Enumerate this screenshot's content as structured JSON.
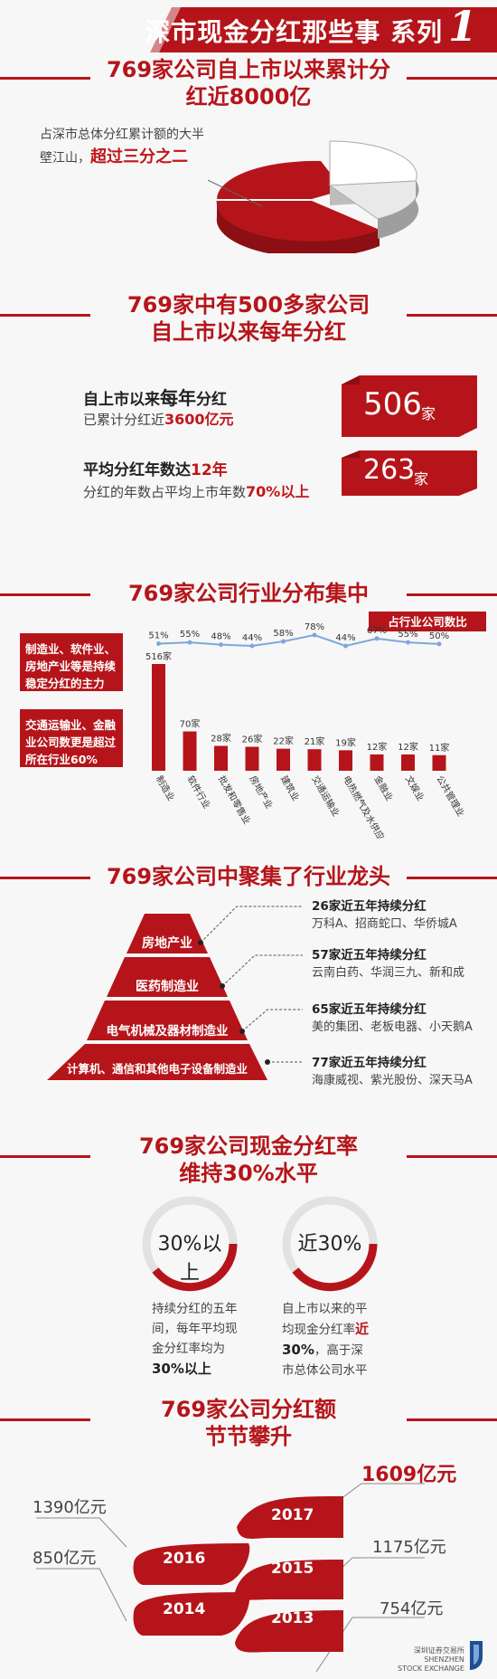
{
  "colors": {
    "accent": "#b5151a",
    "dark_red": "#8c0f13",
    "line_blue": "#7ea6dc",
    "pie_white": "#ffffff",
    "pie_grey": "#bdbdbd"
  },
  "banner": {
    "title": "深市现金分红那些事 系列",
    "number": "1"
  },
  "section1": {
    "title_line1": "769家公司自上市以来累计分",
    "title_line2": "红近8000亿",
    "desc_line1": "占深市总体分红累计额的大半",
    "desc_line2_a": "壁江山，",
    "desc_line2_b": "超过三分之二"
  },
  "section2": {
    "title_line1": "769家中有500多家公司",
    "title_line2": "自上市以来每年分红",
    "stat1": {
      "line1_a": "自上市以来",
      "line1_b": "每年",
      "line1_c": "分红",
      "line2_a": "已累计分红近",
      "line2_b": "3600亿元",
      "number": "506",
      "unit": "家"
    },
    "stat2": {
      "line1_a": "平均分红年数达",
      "line1_b": "12年",
      "line2_a": "分红的年数占平均上市年数",
      "line2_b": "70%以上",
      "number": "263",
      "unit": "家"
    }
  },
  "section3": {
    "title": "769家公司行业分布集中",
    "side_note1": "制造业、软件业、房地产业等是持续稳定分红的主力",
    "side_note2": "交通运输业、金融业公司数更是超过所在行业60%",
    "legend": "占行业公司数比"
  },
  "chart_data": {
    "type": "bar",
    "categories": [
      "制造业",
      "软件行业",
      "批发和零售业",
      "房地产业",
      "建筑业",
      "交通运输业",
      "电热燃气及水供应",
      "金融业",
      "文娱业",
      "公共管理业"
    ],
    "bar_labels": [
      "516家",
      "70家",
      "28家",
      "26家",
      "22家",
      "21家",
      "19家",
      "12家",
      "12家",
      "11家"
    ],
    "values": [
      516,
      70,
      28,
      26,
      22,
      21,
      19,
      12,
      12,
      11
    ],
    "line_labels": [
      "51%",
      "55%",
      "48%",
      "44%",
      "58%",
      "78%",
      "44%",
      "67%",
      "55%",
      "50%"
    ],
    "line_values": [
      51,
      55,
      48,
      44,
      58,
      78,
      44,
      67,
      55,
      50
    ],
    "legend": "占行业公司数比"
  },
  "section4": {
    "title": "769家公司中聚集了行业龙头",
    "tiers": [
      {
        "label": "房地产业",
        "title": "26家近五年持续分红",
        "firms": "万科A、招商蛇口、华侨城A"
      },
      {
        "label": "医药制造业",
        "title": "57家近五年持续分红",
        "firms": "云南白药、华润三九、新和成"
      },
      {
        "label": "电气机械及器材制造业",
        "title": "65家近五年持续分红",
        "firms": "美的集团、老板电器、小天鹅A"
      },
      {
        "label": "计算机、通信和其他电子设备制造业",
        "title": "77家近五年持续分红",
        "firms": "海康威视、紫光股份、深天马A"
      }
    ]
  },
  "section5": {
    "title_line1": "769家公司现金分红率",
    "title_line2": "维持30%水平",
    "ring1": {
      "label": "30%以上",
      "desc1": "持续分红的五年",
      "desc2": "间，每年平均现",
      "desc3": "金分红率均为",
      "desc4": "30%以上"
    },
    "ring2": {
      "label": "近30%",
      "desc1": "自上市以来的平",
      "desc2a": "均现金分红率",
      "desc2b": "近",
      "desc3a": "30%",
      "desc3b": "，高于深",
      "desc4": "市总体公司水平"
    }
  },
  "section6": {
    "title_line1": "769家公司分红额",
    "title_line2": "节节攀升",
    "years": [
      {
        "year": "2017",
        "amount": "1609亿元"
      },
      {
        "year": "2016",
        "amount": "1390亿元"
      },
      {
        "year": "2015",
        "amount": "1175亿元"
      },
      {
        "year": "2014",
        "amount": "850亿元"
      },
      {
        "year": "2013",
        "amount": "754亿元"
      }
    ]
  },
  "footer": {
    "logo_cn": "深圳证券交易所",
    "logo_en1": "SHENZHEN",
    "logo_en2": "STOCK EXCHANGE"
  }
}
